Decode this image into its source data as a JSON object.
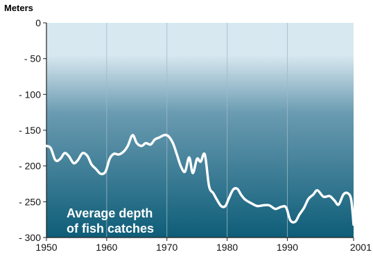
{
  "chart_data": {
    "type": "line",
    "ylabel": "Meters",
    "annotation": [
      "Average depth",
      "of fish catches"
    ],
    "xlim": [
      1950,
      2001
    ],
    "ylim": [
      -300,
      0
    ],
    "x_ticks": [
      1950,
      1960,
      1970,
      1980,
      1990,
      2001
    ],
    "x_tick_labels": [
      "1950",
      "1960",
      "1970",
      "1980",
      "1990",
      "2001"
    ],
    "y_ticks": [
      0,
      -50,
      -100,
      -150,
      -200,
      -250,
      -300
    ],
    "y_tick_labels": [
      "0",
      "- 50",
      "- 100",
      "- 150",
      "- 200",
      "- 250",
      "- 300"
    ],
    "grid": "vertical",
    "colors": {
      "line": "#ffffff",
      "gradient_top": "#d8e8f0",
      "gradient_mid": "#6a9bb1",
      "gradient_bottom": "#0e5d78",
      "grid": "#9dbac6",
      "axis": "#222222"
    },
    "series": [
      {
        "x": [
          1950,
          1950.7,
          1951.5,
          1952.3,
          1953,
          1953.7,
          1954.5,
          1955.2,
          1956,
          1956.8,
          1957.5,
          1958.2,
          1959,
          1959.8,
          1960.5,
          1961.2,
          1962,
          1962.8,
          1963.5,
          1964.3,
          1965,
          1965.8,
          1966.5,
          1967.3,
          1968,
          1968.8,
          1969.5,
          1970.2,
          1971,
          1971.7,
          1972.3,
          1973,
          1973.7,
          1974.3,
          1975,
          1975.6,
          1976.3,
          1977,
          1977.7,
          1978.3,
          1979,
          1979.7,
          1980.3,
          1981,
          1981.7,
          1982.3,
          1983,
          1984,
          1985,
          1986,
          1987,
          1988,
          1989,
          1989.8,
          1990.5,
          1991.3,
          1992,
          1992.8,
          1993.5,
          1994.3,
          1995,
          1996,
          1997,
          1997.8,
          1998.5,
          1999.3,
          2000,
          2000.6,
          2001
        ],
        "y": [
          -172,
          -175,
          -192,
          -190,
          -182,
          -186,
          -196,
          -192,
          -182,
          -186,
          -198,
          -204,
          -211,
          -208,
          -190,
          -183,
          -184,
          -180,
          -172,
          -157,
          -168,
          -172,
          -168,
          -170,
          -163,
          -160,
          -157,
          -158,
          -168,
          -185,
          -200,
          -208,
          -188,
          -210,
          -190,
          -194,
          -184,
          -228,
          -238,
          -247,
          -256,
          -256,
          -245,
          -233,
          -232,
          -240,
          -247,
          -252,
          -256,
          -255,
          -255,
          -260,
          -257,
          -258,
          -276,
          -278,
          -268,
          -258,
          -246,
          -240,
          -234,
          -243,
          -242,
          -248,
          -254,
          -240,
          -238,
          -247,
          -282
        ]
      }
    ]
  }
}
